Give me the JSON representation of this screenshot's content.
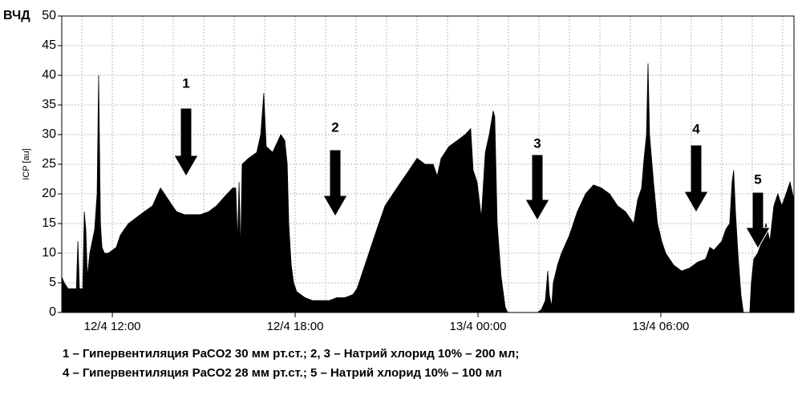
{
  "chart_data": {
    "type": "area",
    "corner_label": "ВЧД",
    "ylabel": "ICP [au]",
    "color": "#000000",
    "grid": true,
    "xlim": [
      10.34,
      34.37
    ],
    "ylim": [
      0,
      50
    ],
    "yticks": [
      0,
      5,
      10,
      15,
      20,
      25,
      30,
      35,
      40,
      45,
      50
    ],
    "xticks": [
      {
        "value": 12,
        "label": "12/4 12:00"
      },
      {
        "value": 18,
        "label": "12/4 18:00"
      },
      {
        "value": 24,
        "label": "13/4 00:00"
      },
      {
        "value": 30,
        "label": "13/4 06:00"
      }
    ],
    "xgrid": [
      11,
      12,
      13,
      14,
      15,
      16,
      17,
      18,
      19,
      20,
      21,
      22,
      23,
      24,
      25,
      26,
      27,
      28,
      29,
      30,
      31,
      32,
      33,
      34
    ],
    "x": [
      10.34,
      10.42,
      10.55,
      10.68,
      10.82,
      10.87,
      10.92,
      11.03,
      11.08,
      11.13,
      11.18,
      11.26,
      11.34,
      11.42,
      11.5,
      11.55,
      11.61,
      11.66,
      11.74,
      11.87,
      12.0,
      12.13,
      12.26,
      12.39,
      12.53,
      12.79,
      13.05,
      13.32,
      13.58,
      13.71,
      13.84,
      13.97,
      14.11,
      14.37,
      14.63,
      14.89,
      15.16,
      15.42,
      15.68,
      15.95,
      16.05,
      16.11,
      16.16,
      16.21,
      16.26,
      16.47,
      16.74,
      16.87,
      16.97,
      17.05,
      17.26,
      17.53,
      17.66,
      17.74,
      17.79,
      17.87,
      17.95,
      18.05,
      18.32,
      18.58,
      18.84,
      19.11,
      19.37,
      19.63,
      19.89,
      20.03,
      20.16,
      20.42,
      20.68,
      20.95,
      21.21,
      21.47,
      21.74,
      22.0,
      22.26,
      22.53,
      22.66,
      22.79,
      23.05,
      23.32,
      23.58,
      23.76,
      23.84,
      23.97,
      24.11,
      24.24,
      24.37,
      24.5,
      24.55,
      24.63,
      24.76,
      24.89,
      24.97,
      25.95,
      26.08,
      26.21,
      26.29,
      26.34,
      26.42,
      26.47,
      26.61,
      26.74,
      27.0,
      27.26,
      27.53,
      27.79,
      28.05,
      28.32,
      28.58,
      28.84,
      29.11,
      29.24,
      29.37,
      29.45,
      29.53,
      29.58,
      29.63,
      29.76,
      29.89,
      30.03,
      30.16,
      30.42,
      30.68,
      30.95,
      31.21,
      31.47,
      31.61,
      31.74,
      32.0,
      32.13,
      32.26,
      32.34,
      32.39,
      32.45,
      32.53,
      32.63,
      32.71,
      32.92,
      32.97,
      33.05,
      33.18,
      33.32,
      33.45,
      33.58,
      33.71,
      33.84,
      33.97,
      34.11,
      34.24,
      34.37
    ],
    "values": [
      6,
      5,
      4,
      4,
      4,
      12,
      4,
      4,
      17,
      14,
      6,
      10,
      12,
      14,
      20,
      40,
      15,
      11,
      10,
      10,
      10.5,
      11,
      13,
      14,
      15,
      16,
      17,
      18,
      21,
      20,
      19,
      18,
      17,
      16.5,
      16.5,
      16.5,
      17,
      18,
      19.5,
      21,
      21,
      12,
      22,
      10,
      25,
      26,
      27,
      30,
      37,
      28,
      27,
      30,
      29,
      25,
      15,
      8,
      5,
      3.5,
      2.5,
      2,
      2,
      2,
      2.5,
      2.5,
      3,
      4,
      6,
      10,
      14,
      18,
      20,
      22,
      24,
      26,
      25,
      25,
      23,
      26,
      28,
      29,
      30,
      31,
      24,
      22,
      16,
      27,
      30,
      34,
      33,
      15,
      6,
      1,
      0,
      0,
      0.5,
      2,
      7,
      3,
      1,
      5,
      8,
      10,
      13,
      17,
      20,
      21.5,
      21,
      20,
      18,
      17,
      15,
      19,
      21,
      26,
      30,
      42,
      30,
      22,
      15,
      12,
      10,
      8,
      7,
      7.5,
      8.5,
      9,
      11,
      10.5,
      12,
      14,
      15,
      22,
      24,
      17,
      10,
      3,
      0,
      0,
      5,
      9,
      10,
      12,
      15,
      12,
      18,
      20,
      18,
      20,
      22,
      19
    ],
    "annotations": [
      "1",
      "2",
      "3",
      "4",
      "5"
    ],
    "notes": [
      "1 – Гипервентиляция PaCO2 30 мм рт.ст.; 2, 3 – Натрий хлорид 10% – 200 мл;",
      "4 – Гипервентиляция PaCO2 28 мм рт.ст.; 5 – Натрий хлорид 10% – 100 мл"
    ]
  }
}
